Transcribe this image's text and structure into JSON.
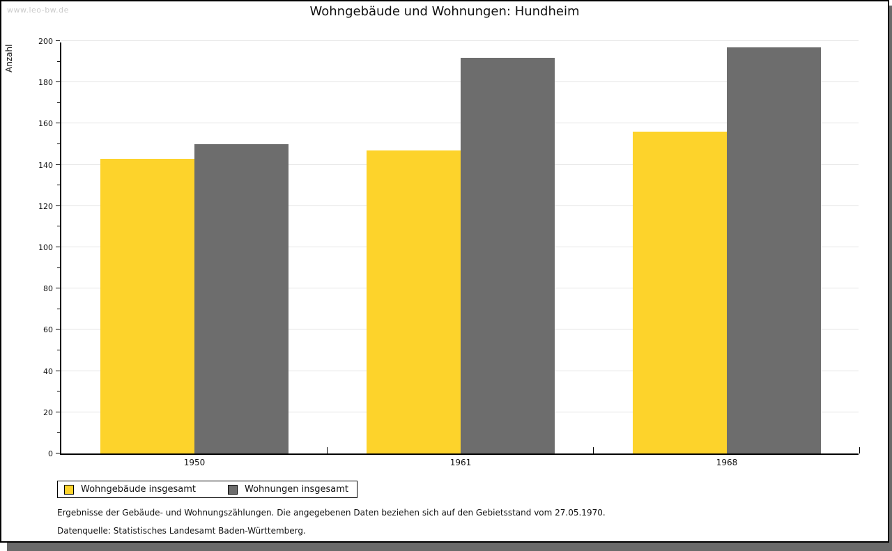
{
  "watermark": "www.leo-bw.de",
  "title": "Wohngebäude und Wohnungen: Hundheim",
  "chart_data": {
    "type": "bar",
    "title": "Wohngebäude und Wohnungen: Hundheim",
    "ylabel": "Anzahl",
    "xlabel": "",
    "categories": [
      "1950",
      "1961",
      "1968"
    ],
    "series": [
      {
        "name": "Wohngebäude insgesamt",
        "color": "#fdd32b",
        "values": [
          143,
          147,
          156
        ]
      },
      {
        "name": "Wohnungen insgesamt",
        "color": "#6d6d6d",
        "values": [
          150,
          192,
          197
        ]
      }
    ],
    "ylim": [
      0,
      200
    ],
    "ytick_major_step": 20,
    "ytick_minor_step": 10,
    "grid": "horizontal-major",
    "legend_position": "bottom-left"
  },
  "footer": {
    "line1": "Ergebnisse der Gebäude- und Wohnungszählungen. Die angegebenen Daten beziehen sich auf den Gebietsstand vom 27.05.1970.",
    "line2": "Datenquelle: Statistisches Landesamt Baden-Württemberg."
  },
  "colors": {
    "series1": "#fdd32b",
    "series2": "#6d6d6d",
    "gridline": "#e4e4e4",
    "axis": "#000000",
    "page_shadow": "#6a6a6a",
    "watermark": "#cbcbcb",
    "text": "#111111"
  }
}
